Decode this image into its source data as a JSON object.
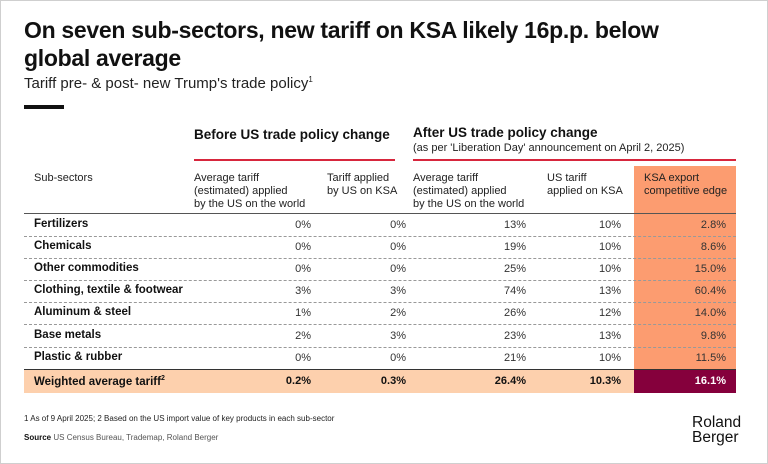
{
  "title": "On seven sub-sectors, new tariff on KSA likely 16p.p. below global average",
  "subtitle": "Tariff pre- & post- new Trump's trade policy",
  "subtitle_sup": "1",
  "colors": {
    "accent_red": "#d7263d",
    "orange": "#fc9c70",
    "light_orange": "#fdd0ad",
    "dark_highlight": "#85003c"
  },
  "chart_data": {
    "type": "table",
    "title": "On seven sub-sectors, new tariff on KSA likely 16p.p. below global average",
    "groups": [
      {
        "label": "Before US trade policy change",
        "sublabel": ""
      },
      {
        "label": "After US trade policy change",
        "sublabel": "(as per 'Liberation Day' announcement on April 2, 2025)"
      }
    ],
    "columns": [
      "Sub-sectors",
      "Average tariff (estimated) applied by the US on the world",
      "Tariff applied by US on KSA",
      "Average tariff (estimated) applied by the US on the world",
      "US tariff applied on KSA",
      "KSA export competitive edge"
    ],
    "column_lines": [
      [
        "Sub-sectors"
      ],
      [
        "Average tariff",
        "(estimated) applied",
        "by the US on the world"
      ],
      [
        "Tariff applied",
        "by US on KSA"
      ],
      [
        "Average tariff",
        "(estimated) applied",
        "by the US on the world"
      ],
      [
        "US tariff",
        "applied on KSA"
      ],
      [
        "KSA export",
        "competitive edge"
      ]
    ],
    "rows": [
      {
        "name": "Fertilizers",
        "values": [
          "0%",
          "0%",
          "13%",
          "10%",
          "2.8%"
        ]
      },
      {
        "name": "Chemicals",
        "values": [
          "0%",
          "0%",
          "19%",
          "10%",
          "8.6%"
        ]
      },
      {
        "name": "Other commodities",
        "values": [
          "0%",
          "0%",
          "25%",
          "10%",
          "15.0%"
        ]
      },
      {
        "name": "Clothing, textile & footwear",
        "values": [
          "3%",
          "3%",
          "74%",
          "13%",
          "60.4%"
        ]
      },
      {
        "name": "Aluminum & steel",
        "values": [
          "1%",
          "2%",
          "26%",
          "12%",
          "14.0%"
        ]
      },
      {
        "name": "Base metals",
        "values": [
          "2%",
          "3%",
          "23%",
          "13%",
          "9.8%"
        ]
      },
      {
        "name": "Plastic & rubber",
        "values": [
          "0%",
          "0%",
          "21%",
          "10%",
          "11.5%"
        ]
      }
    ],
    "total": {
      "name": "Weighted average tariff",
      "sup": "2",
      "values": [
        "0.2%",
        "0.3%",
        "26.4%",
        "10.3%",
        "16.1%"
      ]
    }
  },
  "footnote": "1  As of 9 April 2025;  2  Based on the US import value of key products in each sub-sector",
  "source_label": "Source",
  "source_text": "US Census Bureau, Trademap, Roland Berger",
  "logo": {
    "line1": "Roland",
    "line2": "Berger"
  }
}
